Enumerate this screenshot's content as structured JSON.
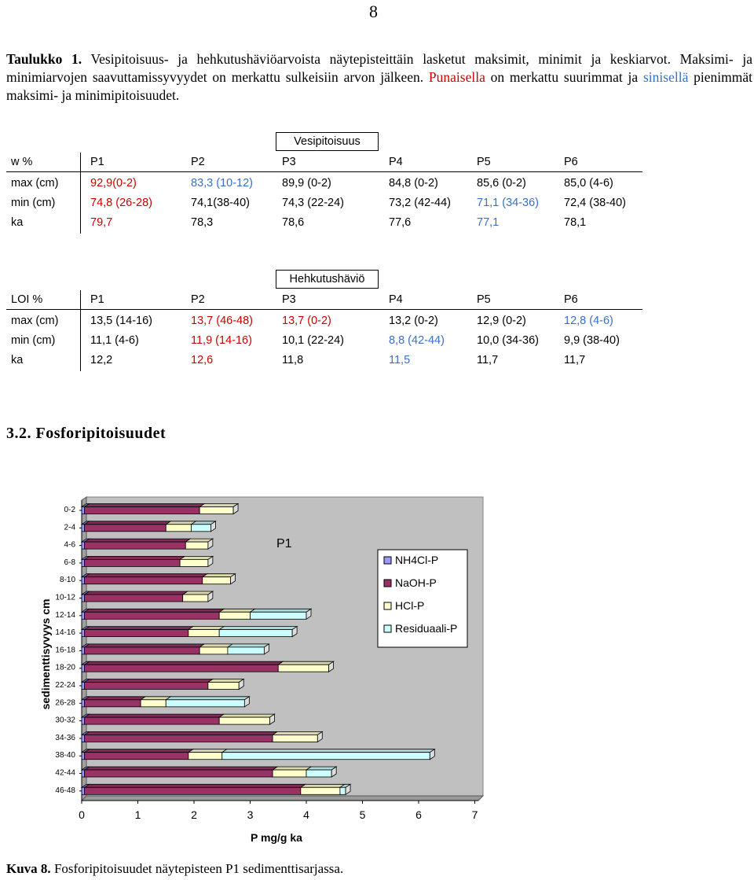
{
  "page_number": "8",
  "caption": {
    "label": "Taulukko 1.",
    "text1": " Vesipitoisuus- ja hehkutushäviöarvoista näytepisteittäin lasketut maksimit, minimit ja keskiarvot. Maksimi- ja minimiarvojen saavuttamissyvyydet on merkattu sulkeisiin arvon jälkeen. ",
    "red_word": "Punaisella",
    "text2": " on merkattu suurimmat ja ",
    "blue_word": "sinisellä",
    "text3": " pienimmät maksimi- ja minimipitoisuudet."
  },
  "table_water": {
    "title": "Vesipitoisuus",
    "header": [
      "w %",
      "P1",
      "P2",
      "P3",
      "P4",
      "P5",
      "P6"
    ],
    "rows": [
      {
        "label": "max (cm)",
        "cells": [
          {
            "text": "92,9(0-2)",
            "color": "red"
          },
          {
            "text": "83,3 (10-12)",
            "color": "blue"
          },
          {
            "text": "89,9 (0-2)",
            "color": ""
          },
          {
            "text": "84,8 (0-2)",
            "color": ""
          },
          {
            "text": "85,6 (0-2)",
            "color": ""
          },
          {
            "text": "85,0 (4-6)",
            "color": ""
          }
        ]
      },
      {
        "label": "min (cm)",
        "cells": [
          {
            "text": "74,8 (26-28)",
            "color": "red"
          },
          {
            "text": "74,1(38-40)",
            "color": ""
          },
          {
            "text": "74,3 (22-24)",
            "color": ""
          },
          {
            "text": "73,2 (42-44)",
            "color": ""
          },
          {
            "text": "71,1 (34-36)",
            "color": "blue"
          },
          {
            "text": "72,4 (38-40)",
            "color": ""
          }
        ]
      },
      {
        "label": "ka",
        "cells": [
          {
            "text": "79,7",
            "color": "red"
          },
          {
            "text": "78,3",
            "color": ""
          },
          {
            "text": "78,6",
            "color": ""
          },
          {
            "text": "77,6",
            "color": ""
          },
          {
            "text": "77,1",
            "color": "blue"
          },
          {
            "text": "78,1",
            "color": ""
          }
        ]
      }
    ]
  },
  "table_loi": {
    "title": "Hehkutushäviö",
    "header": [
      "LOI %",
      "P1",
      "P2",
      "P3",
      "P4",
      "P5",
      "P6"
    ],
    "rows": [
      {
        "label": "max (cm)",
        "cells": [
          {
            "text": "13,5 (14-16)",
            "color": ""
          },
          {
            "text": "13,7 (46-48)",
            "color": "red"
          },
          {
            "text": "13,7 (0-2)",
            "color": "red"
          },
          {
            "text": "13,2 (0-2)",
            "color": ""
          },
          {
            "text": "12,9 (0-2)",
            "color": ""
          },
          {
            "text": "12,8 (4-6)",
            "color": "blue"
          }
        ]
      },
      {
        "label": "min (cm)",
        "cells": [
          {
            "text": "11,1 (4-6)",
            "color": ""
          },
          {
            "text": "11,9 (14-16)",
            "color": "red"
          },
          {
            "text": "10,1 (22-24)",
            "color": ""
          },
          {
            "text": "8,8 (42-44)",
            "color": "blue"
          },
          {
            "text": "10,0 (34-36)",
            "color": ""
          },
          {
            "text": "9,9 (38-40)",
            "color": ""
          }
        ]
      },
      {
        "label": "ka",
        "cells": [
          {
            "text": "12,2",
            "color": ""
          },
          {
            "text": "12,6",
            "color": "red"
          },
          {
            "text": "11,8",
            "color": ""
          },
          {
            "text": "11,5",
            "color": "blue"
          },
          {
            "text": "11,7",
            "color": ""
          },
          {
            "text": "11,7",
            "color": ""
          }
        ]
      }
    ]
  },
  "colors": {
    "red": "#cc0000",
    "blue": "#3a6fc9"
  },
  "section_heading": "3.2. Fosforipitoisuudet",
  "figure_caption": {
    "label": "Kuva 8.",
    "text": " Fosforipitoisuudet näytepisteen P1 sedimenttisarjassa."
  },
  "chart_data": {
    "type": "bar",
    "orientation": "horizontal",
    "stacked": true,
    "title": "P1",
    "xlabel": "P mg/g ka",
    "ylabel": "sedimenttisyvyys cm",
    "xlim": [
      0,
      7
    ],
    "xticks": [
      "0",
      "1",
      "2",
      "3",
      "4",
      "5",
      "6",
      "7"
    ],
    "categories": [
      "0-2",
      "2-4",
      "4-6",
      "6-8",
      "8-10",
      "10-12",
      "12-14",
      "14-16",
      "16-18",
      "18-20",
      "22-24",
      "26-28",
      "30-32",
      "34-36",
      "38-40",
      "42-44",
      "46-48"
    ],
    "series": [
      {
        "name": "NH4Cl-P",
        "color": "#9999ff",
        "values": [
          0.05,
          0.05,
          0.05,
          0.05,
          0.05,
          0.05,
          0.05,
          0.05,
          0.05,
          0.05,
          0.05,
          0.05,
          0.05,
          0.05,
          0.05,
          0.05,
          0.05
        ]
      },
      {
        "name": "NaOH-P",
        "color": "#993366",
        "values": [
          2.05,
          1.45,
          1.8,
          1.7,
          2.1,
          1.75,
          2.4,
          1.85,
          2.05,
          3.45,
          2.2,
          1.0,
          2.4,
          3.35,
          1.85,
          3.35,
          3.85
        ]
      },
      {
        "name": "HCl-P",
        "color": "#ffffcc",
        "values": [
          0.6,
          0.45,
          0.4,
          0.5,
          0.5,
          0.45,
          0.55,
          0.55,
          0.5,
          0.9,
          0.55,
          0.45,
          0.9,
          0.8,
          0.6,
          0.6,
          0.7
        ]
      },
      {
        "name": "Residuaali-P",
        "color": "#ccffff",
        "values": [
          0.0,
          0.35,
          0.0,
          0.0,
          0.0,
          0.0,
          1.0,
          1.3,
          0.65,
          0.0,
          0.0,
          1.4,
          0.0,
          0.0,
          3.7,
          0.45,
          0.1
        ]
      }
    ],
    "grid": false,
    "legend": "right"
  }
}
